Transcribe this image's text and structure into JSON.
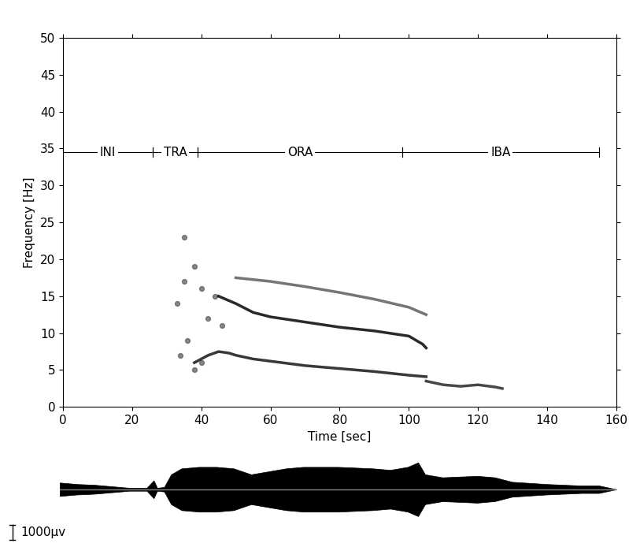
{
  "chart_data": [
    {
      "type": "spectrogram",
      "x_label": "Time [sec]",
      "y_label": "Frequency [Hz]",
      "xlim": [
        0,
        160
      ],
      "xticks": [
        0,
        20,
        40,
        60,
        80,
        100,
        120,
        140,
        160
      ],
      "ylim": [
        0,
        50
      ],
      "yticks": [
        0,
        5,
        10,
        15,
        20,
        25,
        30,
        35,
        40,
        45,
        50
      ],
      "phases": [
        {
          "label": "INI",
          "start": 0,
          "end": 26
        },
        {
          "label": "TRA",
          "start": 26,
          "end": 39
        },
        {
          "label": "ORA",
          "start": 39,
          "end": 98
        },
        {
          "label": "IBA",
          "start": 98,
          "end": 155
        }
      ],
      "phase_y": 34.5,
      "series": [
        {
          "type": "line",
          "color": "#222222",
          "x": [
            38,
            42,
            45,
            48,
            50,
            55,
            60,
            70,
            80,
            90,
            100,
            105
          ],
          "values": [
            6,
            7,
            7.5,
            7.3,
            7,
            6.5,
            6.2,
            5.6,
            5.2,
            4.8,
            4.3,
            4.1
          ]
        },
        {
          "type": "line",
          "color": "#111111",
          "x": [
            45,
            50,
            55,
            60,
            70,
            80,
            90,
            100,
            104,
            105
          ],
          "values": [
            15,
            14,
            12.8,
            12.2,
            11.5,
            10.8,
            10.3,
            9.6,
            8.5,
            8
          ]
        },
        {
          "type": "line",
          "color": "#666666",
          "x": [
            50,
            60,
            70,
            80,
            90,
            100,
            105
          ],
          "values": [
            17.5,
            17,
            16.3,
            15.5,
            14.6,
            13.5,
            12.5
          ]
        },
        {
          "type": "line",
          "color": "#333333",
          "x": [
            105,
            110,
            115,
            120,
            125,
            127
          ],
          "values": [
            3.5,
            3,
            2.8,
            3,
            2.7,
            2.5
          ]
        },
        {
          "type": "scatter",
          "color": "#555555",
          "marker": "o",
          "x": [
            33,
            35,
            38,
            40,
            42,
            36,
            34,
            38,
            40,
            44,
            46,
            35
          ],
          "values": [
            14,
            17,
            19,
            16,
            12,
            9,
            7,
            5,
            6,
            15,
            11,
            23
          ]
        }
      ]
    },
    {
      "type": "trace",
      "tick_labels": false,
      "xlim": [
        0,
        160
      ],
      "ylim": [
        -3500,
        2000
      ],
      "color": "#000000",
      "x": [
        0,
        5,
        10,
        20,
        25,
        27,
        28,
        30,
        32,
        35,
        40,
        45,
        50,
        55,
        60,
        65,
        70,
        80,
        90,
        95,
        100,
        103,
        105,
        110,
        120,
        125,
        130,
        140,
        150,
        155,
        160
      ],
      "amplitude": [
        450,
        350,
        300,
        100,
        100,
        600,
        100,
        150,
        1000,
        1400,
        1500,
        1500,
        1400,
        1000,
        1200,
        1400,
        1500,
        1500,
        1400,
        1300,
        1500,
        1800,
        1000,
        800,
        900,
        800,
        500,
        350,
        250,
        250,
        0
      ],
      "scale_bar": 1000,
      "scale_bar_label": "1000µv"
    }
  ]
}
